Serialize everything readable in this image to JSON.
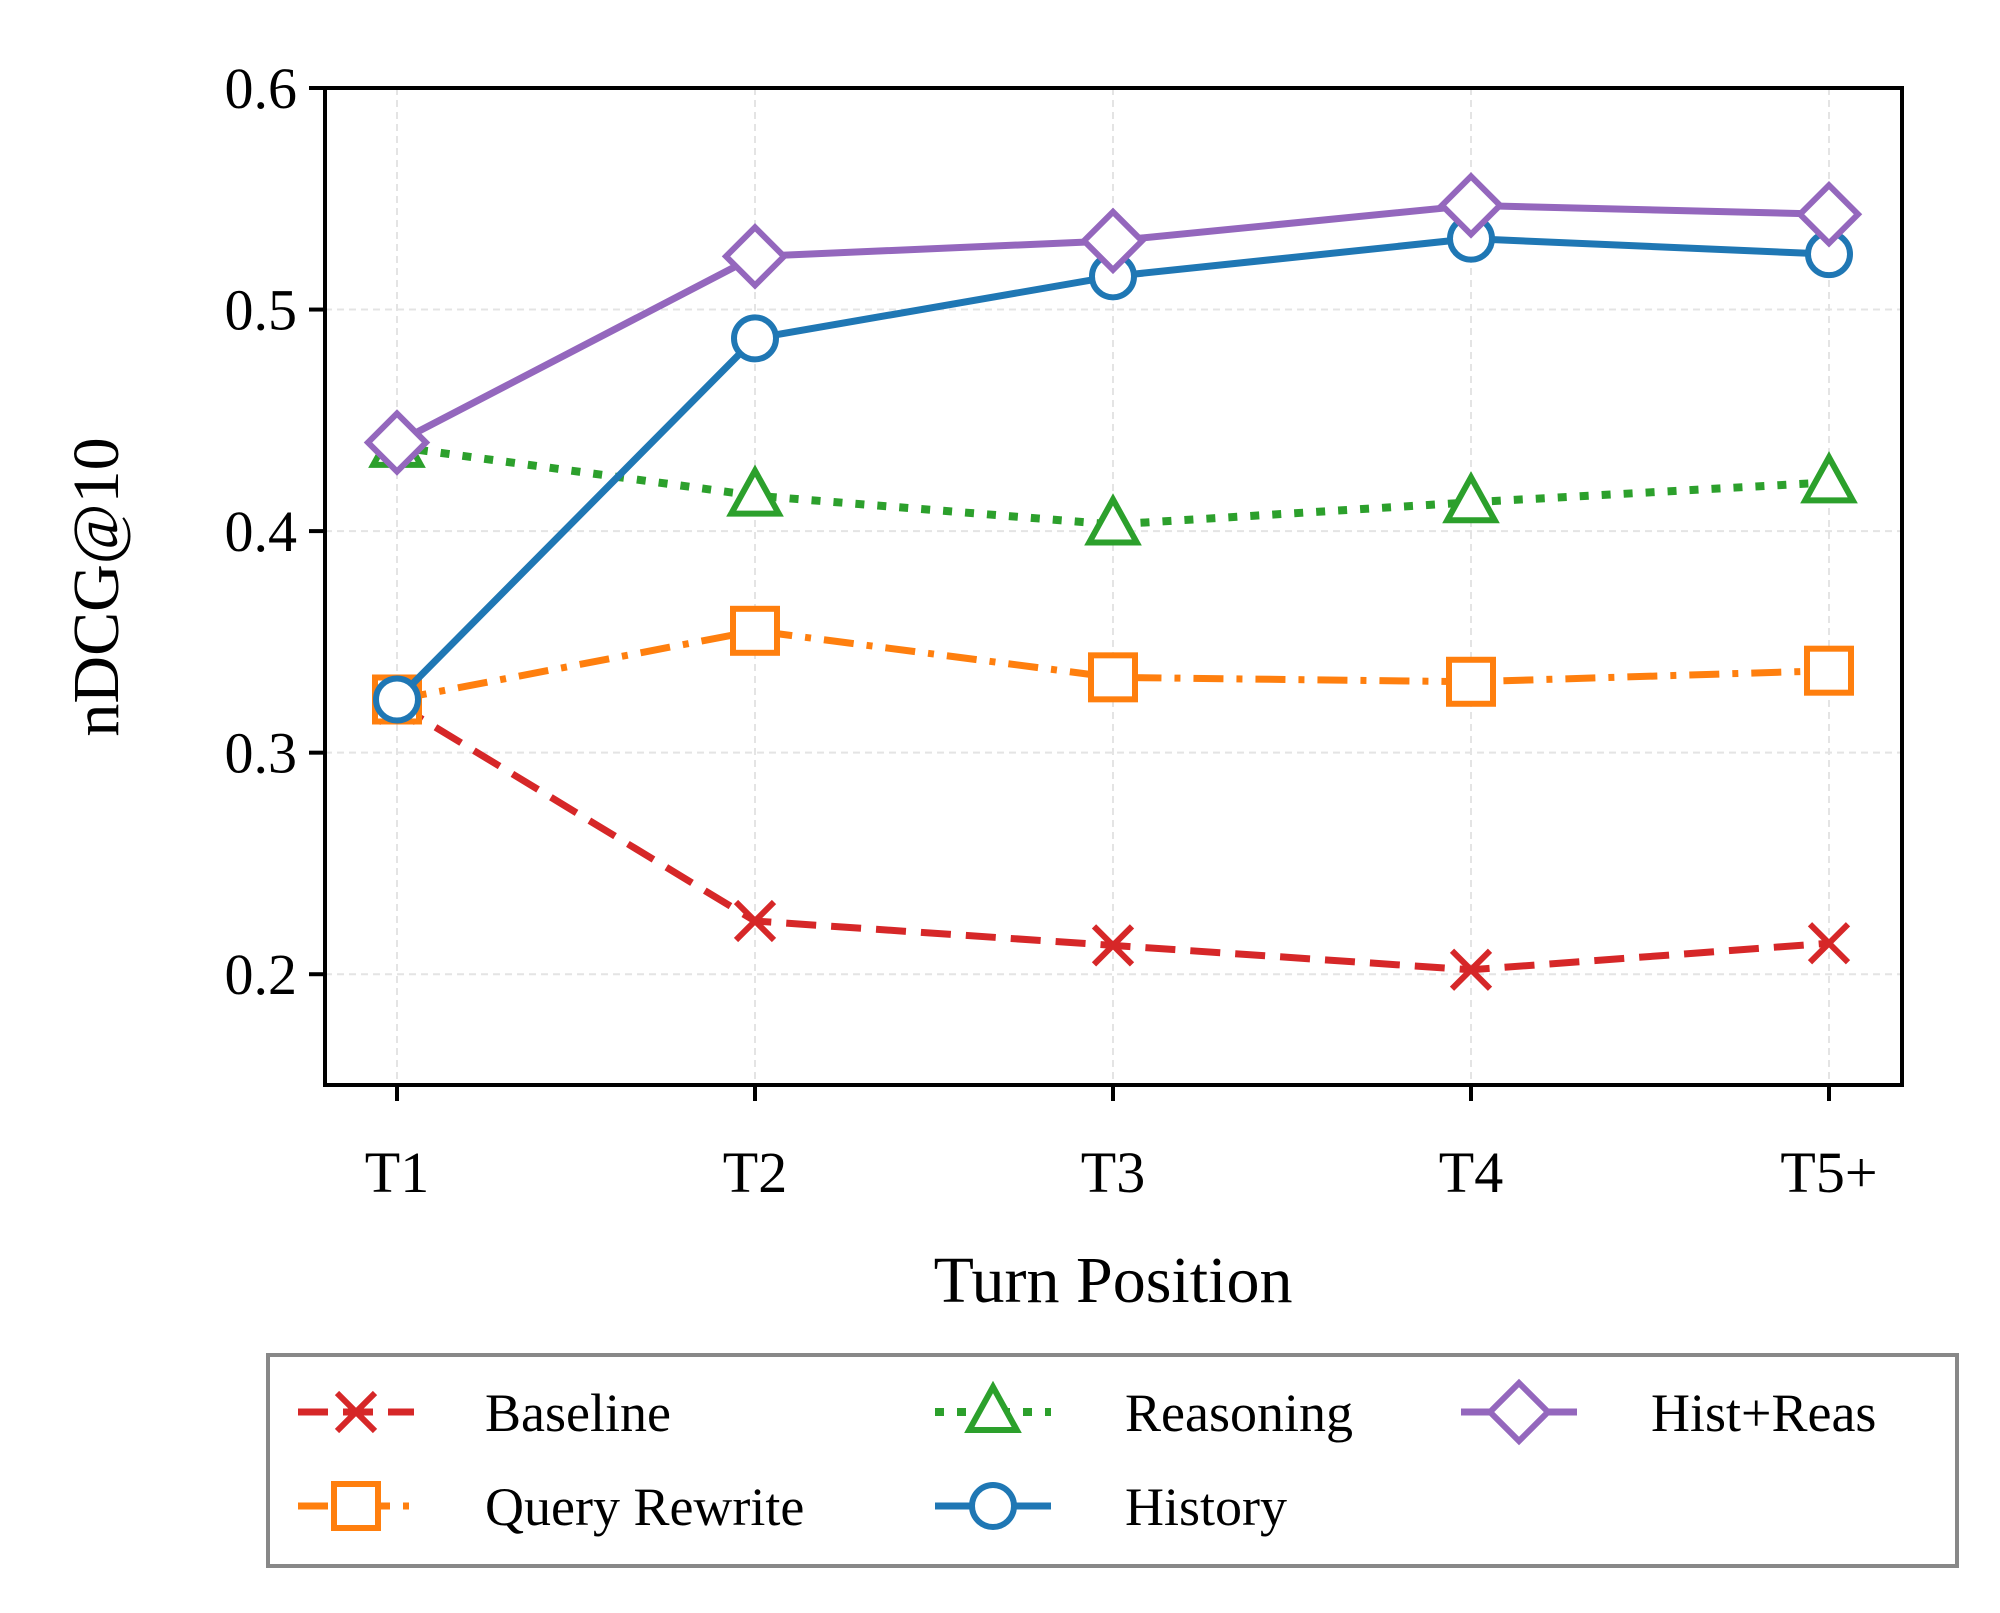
{
  "chart_data": {
    "type": "line",
    "title": "",
    "xlabel": "Turn Position",
    "ylabel": "nDCG@10",
    "categories": [
      "T1",
      "T2",
      "T3",
      "T4",
      "T5+"
    ],
    "ylim": [
      0.15,
      0.6
    ],
    "yticks": [
      0.2,
      0.3,
      0.4,
      0.5,
      0.6
    ],
    "ytick_labels": [
      "0.2",
      "0.3",
      "0.4",
      "0.5",
      "0.6"
    ],
    "grid": true,
    "legend_position": "bottom",
    "series": [
      {
        "name": "Baseline",
        "values": [
          0.322,
          0.224,
          0.213,
          0.202,
          0.214
        ],
        "color": "#d62728",
        "marker": "x",
        "linestyle": "dashed"
      },
      {
        "name": "Query Rewrite",
        "values": [
          0.324,
          0.355,
          0.334,
          0.332,
          0.337
        ],
        "color": "#ff7f0e",
        "marker": "square",
        "linestyle": "dashdot"
      },
      {
        "name": "Reasoning",
        "values": [
          0.438,
          0.416,
          0.403,
          0.413,
          0.422
        ],
        "color": "#2ca02c",
        "marker": "triangle",
        "linestyle": "dotted"
      },
      {
        "name": "History",
        "values": [
          0.324,
          0.487,
          0.515,
          0.532,
          0.525
        ],
        "color": "#1f77b4",
        "marker": "circle",
        "linestyle": "solid"
      },
      {
        "name": "Hist+Reas",
        "values": [
          0.44,
          0.524,
          0.531,
          0.547,
          0.543
        ],
        "color": "#9467bd",
        "marker": "diamond",
        "linestyle": "solid"
      }
    ],
    "legend_order": [
      "Baseline",
      "Query Rewrite",
      "Reasoning",
      "History",
      "Hist+Reas"
    ]
  }
}
